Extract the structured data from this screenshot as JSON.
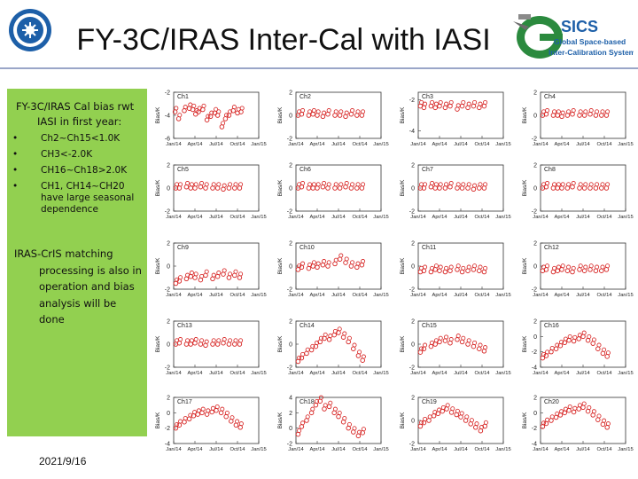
{
  "slide": {
    "title": "FY-3C/IRAS Inter-Cal with IASI",
    "date": "2021/9/16",
    "left_panel": {
      "heading": "FY-3C/IRAS Cal bias rwt IASI in first year:",
      "bullets": [
        "Ch2~Ch15<1.0K",
        "CH3<-2.0K",
        "CH16~Ch18>2.0K",
        "CH1, CH14~CH20 have large seasonal dependence"
      ],
      "note": "IRAS-CrIS matching processing is also in operation and bias analysis will be done"
    },
    "logo_right": {
      "wordmark": "SICS",
      "line1": "Global Space-based",
      "line2": "Inter-Calibration System"
    }
  },
  "colors": {
    "marker": "#d6201f",
    "panel": "#92d050",
    "rule": "#9aa6c8"
  },
  "chart_data": {
    "type": "scatter",
    "ylabel": "Bias/K",
    "xticks": [
      "Jan/14",
      "Apr/14",
      "Jul/14",
      "Oct/14",
      "Jan/15"
    ],
    "panels": [
      {
        "name": "Ch1",
        "yticks": [
          -2,
          -4,
          -6
        ],
        "ylim": [
          -6,
          -2
        ],
        "x": [
          0.2,
          0.7,
          1.5,
          2.2,
          2.7,
          3.1,
          3.5,
          4.1,
          4.7,
          5.2,
          5.8,
          6.2,
          6.8,
          7.3,
          7.8,
          8.4,
          9.0,
          9.5
        ],
        "y": [
          -3.7,
          -4.3,
          -3.6,
          -3.4,
          -3.5,
          -3.9,
          -3.7,
          -3.5,
          -4.4,
          -4.1,
          -3.8,
          -4.0,
          -5.0,
          -4.3,
          -4.0,
          -3.6,
          -3.8,
          -3.7
        ]
      },
      {
        "name": "Ch2",
        "yticks": [
          2,
          0,
          -2
        ],
        "ylim": [
          -2,
          2
        ],
        "x": [
          0.3,
          0.8,
          1.8,
          2.4,
          3.0,
          3.8,
          4.5,
          5.5,
          6.2,
          7.0,
          7.8,
          8.6,
          9.3
        ],
        "y": [
          0.0,
          0.1,
          0.0,
          0.1,
          0.0,
          -0.1,
          0.1,
          0.0,
          0.0,
          -0.1,
          0.1,
          0.0,
          0.0
        ]
      },
      {
        "name": "Ch3",
        "yticks": [
          -2,
          -4
        ],
        "ylim": [
          -4.5,
          -1.5
        ],
        "x": [
          0.3,
          0.8,
          1.8,
          2.4,
          3.0,
          3.8,
          4.5,
          5.5,
          6.2,
          7.0,
          7.8,
          8.6,
          9.3
        ],
        "y": [
          -2.4,
          -2.5,
          -2.4,
          -2.5,
          -2.4,
          -2.5,
          -2.4,
          -2.6,
          -2.4,
          -2.5,
          -2.4,
          -2.5,
          -2.4
        ]
      },
      {
        "name": "Ch4",
        "yticks": [
          2,
          0,
          -2
        ],
        "ylim": [
          -2,
          2
        ],
        "x": [
          0.3,
          0.8,
          1.8,
          2.4,
          3.0,
          3.8,
          4.5,
          5.5,
          6.2,
          7.0,
          7.8,
          8.6,
          9.3
        ],
        "y": [
          0.0,
          0.1,
          0.0,
          0.0,
          -0.1,
          0.0,
          0.1,
          0.0,
          0.0,
          0.1,
          0.0,
          0.0,
          0.0
        ]
      },
      {
        "name": "Ch5",
        "yticks": [
          2,
          0,
          -2
        ],
        "ylim": [
          -2,
          2
        ],
        "x": [
          0.3,
          0.8,
          1.8,
          2.4,
          3.0,
          3.8,
          4.5,
          5.5,
          6.2,
          7.0,
          7.8,
          8.6,
          9.3
        ],
        "y": [
          0.0,
          0.0,
          0.1,
          0.0,
          0.0,
          0.1,
          0.0,
          0.0,
          0.0,
          -0.1,
          0.0,
          0.0,
          0.0
        ]
      },
      {
        "name": "Ch6",
        "yticks": [
          2,
          0,
          -2
        ],
        "ylim": [
          -2,
          2
        ],
        "x": [
          0.3,
          0.8,
          1.8,
          2.4,
          3.0,
          3.8,
          4.5,
          5.5,
          6.2,
          7.0,
          7.8,
          8.6,
          9.3
        ],
        "y": [
          0.0,
          0.1,
          0.0,
          0.0,
          0.0,
          0.1,
          0.0,
          0.0,
          0.0,
          0.1,
          0.0,
          0.0,
          0.0
        ]
      },
      {
        "name": "Ch7",
        "yticks": [
          2,
          0,
          -2
        ],
        "ylim": [
          -2,
          2
        ],
        "x": [
          0.3,
          0.8,
          1.8,
          2.4,
          3.0,
          3.8,
          4.5,
          5.5,
          6.2,
          7.0,
          7.8,
          8.6,
          9.3
        ],
        "y": [
          0.0,
          0.0,
          0.1,
          0.0,
          0.0,
          0.0,
          0.1,
          0.0,
          0.0,
          0.0,
          -0.1,
          0.0,
          0.0
        ]
      },
      {
        "name": "Ch8",
        "yticks": [
          2,
          0,
          -2
        ],
        "ylim": [
          -2,
          2
        ],
        "x": [
          0.3,
          0.8,
          1.8,
          2.4,
          3.0,
          3.8,
          4.5,
          5.5,
          6.2,
          7.0,
          7.8,
          8.6,
          9.3
        ],
        "y": [
          0.0,
          0.1,
          0.0,
          0.0,
          0.0,
          0.0,
          0.1,
          0.0,
          0.0,
          0.0,
          0.0,
          0.0,
          0.0
        ]
      },
      {
        "name": "Ch9",
        "yticks": [
          2,
          0,
          -2
        ],
        "ylim": [
          -2,
          2
        ],
        "x": [
          0.3,
          0.8,
          1.8,
          2.4,
          3.0,
          3.8,
          4.5,
          5.5,
          6.2,
          7.0,
          7.8,
          8.6,
          9.3
        ],
        "y": [
          -1.5,
          -1.3,
          -1.1,
          -0.9,
          -1.0,
          -1.2,
          -0.8,
          -1.1,
          -0.9,
          -0.7,
          -1.0,
          -0.8,
          -1.0
        ]
      },
      {
        "name": "Ch10",
        "yticks": [
          2,
          0,
          -2
        ],
        "ylim": [
          -2,
          2
        ],
        "x": [
          0.3,
          0.8,
          1.8,
          2.4,
          3.0,
          3.8,
          4.5,
          5.5,
          6.2,
          7.0,
          7.8,
          8.6,
          9.3
        ],
        "y": [
          -0.3,
          -0.1,
          -0.2,
          0.0,
          -0.1,
          0.1,
          0.0,
          0.2,
          0.6,
          0.3,
          0.0,
          -0.1,
          0.1
        ]
      },
      {
        "name": "Ch11",
        "yticks": [
          2,
          0,
          -2
        ],
        "ylim": [
          -2,
          2
        ],
        "x": [
          0.3,
          0.8,
          1.8,
          2.4,
          3.0,
          3.8,
          4.5,
          5.5,
          6.2,
          7.0,
          7.8,
          8.6,
          9.3
        ],
        "y": [
          -0.5,
          -0.4,
          -0.5,
          -0.3,
          -0.4,
          -0.5,
          -0.4,
          -0.3,
          -0.5,
          -0.4,
          -0.3,
          -0.4,
          -0.5
        ]
      },
      {
        "name": "Ch12",
        "yticks": [
          2,
          0,
          -2
        ],
        "ylim": [
          -2,
          2
        ],
        "x": [
          0.3,
          0.8,
          1.8,
          2.4,
          3.0,
          3.8,
          4.5,
          5.5,
          6.2,
          7.0,
          7.8,
          8.6,
          9.3
        ],
        "y": [
          -0.4,
          -0.3,
          -0.5,
          -0.4,
          -0.3,
          -0.4,
          -0.5,
          -0.3,
          -0.4,
          -0.3,
          -0.4,
          -0.4,
          -0.3
        ]
      },
      {
        "name": "Ch13",
        "yticks": [
          2,
          0,
          -2
        ],
        "ylim": [
          -2,
          2
        ],
        "x": [
          0.3,
          0.8,
          1.8,
          2.4,
          3.0,
          3.8,
          4.5,
          5.5,
          6.2,
          7.0,
          7.8,
          8.6,
          9.3
        ],
        "y": [
          0.0,
          0.1,
          0.0,
          0.0,
          0.1,
          0.0,
          -0.1,
          0.0,
          0.0,
          0.1,
          0.0,
          0.0,
          0.0
        ]
      },
      {
        "name": "Ch14",
        "yticks": [
          2,
          0,
          -2
        ],
        "ylim": [
          -2,
          2
        ],
        "x": [
          0.3,
          0.8,
          1.5,
          2.2,
          2.8,
          3.4,
          4.0,
          4.7,
          5.4,
          6.0,
          6.7,
          7.4,
          8.1,
          8.8,
          9.4
        ],
        "y": [
          -1.5,
          -1.2,
          -0.8,
          -0.5,
          -0.2,
          0.2,
          0.5,
          0.4,
          0.8,
          1.0,
          0.6,
          0.2,
          -0.4,
          -1.0,
          -1.4
        ]
      },
      {
        "name": "Ch15",
        "yticks": [
          2,
          0,
          -2
        ],
        "ylim": [
          -2,
          2
        ],
        "x": [
          0.3,
          0.8,
          1.8,
          2.4,
          3.0,
          3.8,
          4.5,
          5.5,
          6.2,
          7.0,
          7.8,
          8.6,
          9.3
        ],
        "y": [
          -0.7,
          -0.4,
          -0.2,
          0.0,
          0.2,
          0.3,
          0.1,
          0.4,
          0.2,
          0.0,
          -0.2,
          -0.4,
          -0.6
        ]
      },
      {
        "name": "Ch16",
        "yticks": [
          2,
          0,
          -2,
          -4
        ],
        "ylim": [
          -4,
          2
        ],
        "x": [
          0.3,
          0.8,
          1.5,
          2.2,
          2.8,
          3.4,
          4.0,
          4.7,
          5.4,
          6.0,
          6.7,
          7.4,
          8.1,
          8.8,
          9.4
        ],
        "y": [
          -2.8,
          -2.5,
          -2.0,
          -1.6,
          -1.2,
          -0.8,
          -0.5,
          -0.6,
          -0.3,
          0.0,
          -0.5,
          -0.9,
          -1.6,
          -2.2,
          -2.6
        ]
      },
      {
        "name": "Ch17",
        "yticks": [
          2,
          0,
          -2,
          -4
        ],
        "ylim": [
          -4,
          2
        ],
        "x": [
          0.3,
          0.8,
          1.5,
          2.2,
          2.8,
          3.4,
          4.0,
          4.7,
          5.4,
          6.0,
          6.7,
          7.4,
          8.1,
          8.8,
          9.4
        ],
        "y": [
          -2.0,
          -1.6,
          -1.2,
          -0.8,
          -0.4,
          -0.2,
          0.0,
          -0.2,
          0.1,
          0.3,
          0.0,
          -0.5,
          -1.1,
          -1.6,
          -1.9
        ]
      },
      {
        "name": "Ch18",
        "yticks": [
          4,
          2,
          0,
          -2
        ],
        "ylim": [
          -2,
          4
        ],
        "x": [
          0.3,
          0.8,
          1.5,
          2.2,
          2.8,
          3.4,
          4.0,
          4.7,
          5.4,
          6.0,
          6.7,
          7.4,
          8.1,
          8.8,
          9.4
        ],
        "y": [
          -0.8,
          0.2,
          1.0,
          2.0,
          3.0,
          3.5,
          2.5,
          2.8,
          2.0,
          1.5,
          0.8,
          0.0,
          -0.5,
          -1.0,
          -0.6
        ]
      },
      {
        "name": "Ch19",
        "yticks": [
          2,
          0,
          -2
        ],
        "ylim": [
          -2,
          2
        ],
        "x": [
          0.3,
          0.8,
          1.5,
          2.2,
          2.8,
          3.4,
          4.0,
          4.7,
          5.4,
          6.0,
          6.7,
          7.4,
          8.1,
          8.8,
          9.4
        ],
        "y": [
          -0.5,
          -0.2,
          0.0,
          0.4,
          0.6,
          0.8,
          1.0,
          0.7,
          0.5,
          0.3,
          0.0,
          -0.3,
          -0.6,
          -0.9,
          -0.5
        ]
      },
      {
        "name": "Ch20",
        "yticks": [
          2,
          0,
          -2,
          -4
        ],
        "ylim": [
          -4,
          2
        ],
        "x": [
          0.3,
          0.8,
          1.5,
          2.2,
          2.8,
          3.4,
          4.0,
          4.7,
          5.4,
          6.0,
          6.7,
          7.4,
          8.1,
          8.8,
          9.4
        ],
        "y": [
          -1.8,
          -1.4,
          -1.0,
          -0.6,
          -0.3,
          0.0,
          0.3,
          0.1,
          0.5,
          0.7,
          0.2,
          -0.3,
          -0.9,
          -1.5,
          -1.9
        ]
      }
    ]
  }
}
